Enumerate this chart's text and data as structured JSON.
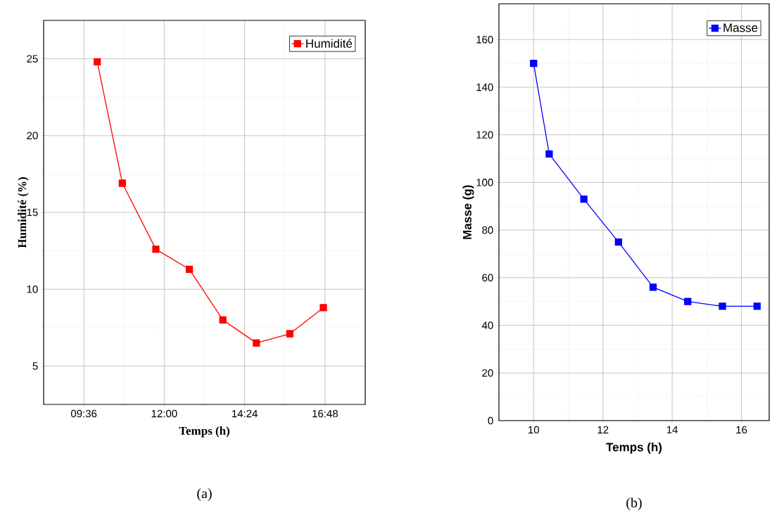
{
  "chart_data": [
    {
      "type": "line",
      "xlabel": "Temps (h)",
      "ylabel": "Humidité (%)",
      "x": [
        10.0,
        10.75,
        11.75,
        12.75,
        13.75,
        14.75,
        15.75,
        16.75
      ],
      "series": [
        {
          "name": "Humidité",
          "color": "#ff0000",
          "values": [
            24.8,
            16.9,
            12.6,
            11.3,
            8.0,
            6.5,
            7.1,
            8.8
          ]
        }
      ],
      "xlim": [
        8.4,
        18.0
      ],
      "xticks": [
        {
          "value": 9.6,
          "label": "09:36"
        },
        {
          "value": 12.0,
          "label": "12:00"
        },
        {
          "value": 14.4,
          "label": "14:24"
        },
        {
          "value": 16.8,
          "label": "16:48"
        }
      ],
      "ylim": [
        2.5,
        27.5
      ],
      "yticks": [
        5,
        10,
        15,
        20,
        25
      ],
      "grid": true,
      "legend": "top right",
      "marker": "square",
      "line_style": "solid",
      "annotations": [
        "(a)"
      ]
    },
    {
      "type": "line",
      "xlabel": "Temps (h)",
      "ylabel": "Masse (g)",
      "x": [
        10.0,
        10.45,
        11.45,
        12.45,
        13.45,
        14.45,
        15.45,
        16.45
      ],
      "series": [
        {
          "name": "Masse",
          "color": "#0000ff",
          "values": [
            150,
            112,
            93,
            75,
            56,
            50,
            48,
            48
          ]
        }
      ],
      "xlim": [
        9,
        16.8
      ],
      "xticks": [
        10,
        12,
        14,
        16
      ],
      "ylim": [
        0,
        175
      ],
      "yticks": [
        0,
        20,
        40,
        60,
        80,
        100,
        120,
        140,
        160
      ],
      "grid": true,
      "legend": "top right",
      "marker": "square",
      "line_style": "solid",
      "annotations": [
        "(b)"
      ]
    }
  ]
}
